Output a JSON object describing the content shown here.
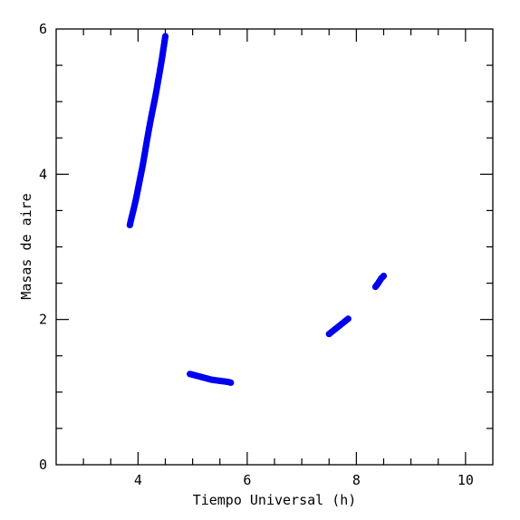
{
  "chart_data": {
    "type": "scatter",
    "title": "",
    "xlabel": "Tiempo Universal (h)",
    "ylabel": "Masas de aire",
    "xlim": [
      2.5,
      10.5
    ],
    "ylim": [
      0,
      6
    ],
    "x_ticks": [
      4,
      6,
      8,
      10
    ],
    "y_ticks": [
      0,
      2,
      4,
      6
    ],
    "x_minor_step": 0.5,
    "y_minor_step": 0.5,
    "grid": false,
    "legend": "none",
    "colors": {
      "points": "#0000ee",
      "axes": "#000000"
    },
    "series": [
      {
        "x": [
          3.85,
          3.88,
          3.92,
          3.96,
          4.0,
          4.04,
          4.08,
          4.12,
          4.16,
          4.2,
          4.24,
          4.28,
          4.32,
          4.36,
          4.4,
          4.44,
          4.47,
          4.5
        ],
        "y": [
          3.3,
          3.4,
          3.52,
          3.65,
          3.8,
          3.95,
          4.1,
          4.27,
          4.45,
          4.62,
          4.78,
          4.93,
          5.08,
          5.25,
          5.42,
          5.6,
          5.75,
          5.9
        ]
      },
      {
        "x": [
          4.95,
          5.05,
          5.15,
          5.25,
          5.35,
          5.45,
          5.55,
          5.65,
          5.7
        ],
        "y": [
          1.25,
          1.23,
          1.21,
          1.19,
          1.17,
          1.16,
          1.15,
          1.14,
          1.13
        ]
      },
      {
        "x": [
          7.5,
          7.55,
          7.6,
          7.65,
          7.7,
          7.75,
          7.8,
          7.85
        ],
        "y": [
          1.8,
          1.83,
          1.86,
          1.89,
          1.92,
          1.95,
          1.98,
          2.01
        ]
      },
      {
        "x": [
          8.35,
          8.4,
          8.45,
          8.5
        ],
        "y": [
          2.45,
          2.5,
          2.56,
          2.6
        ]
      }
    ]
  }
}
